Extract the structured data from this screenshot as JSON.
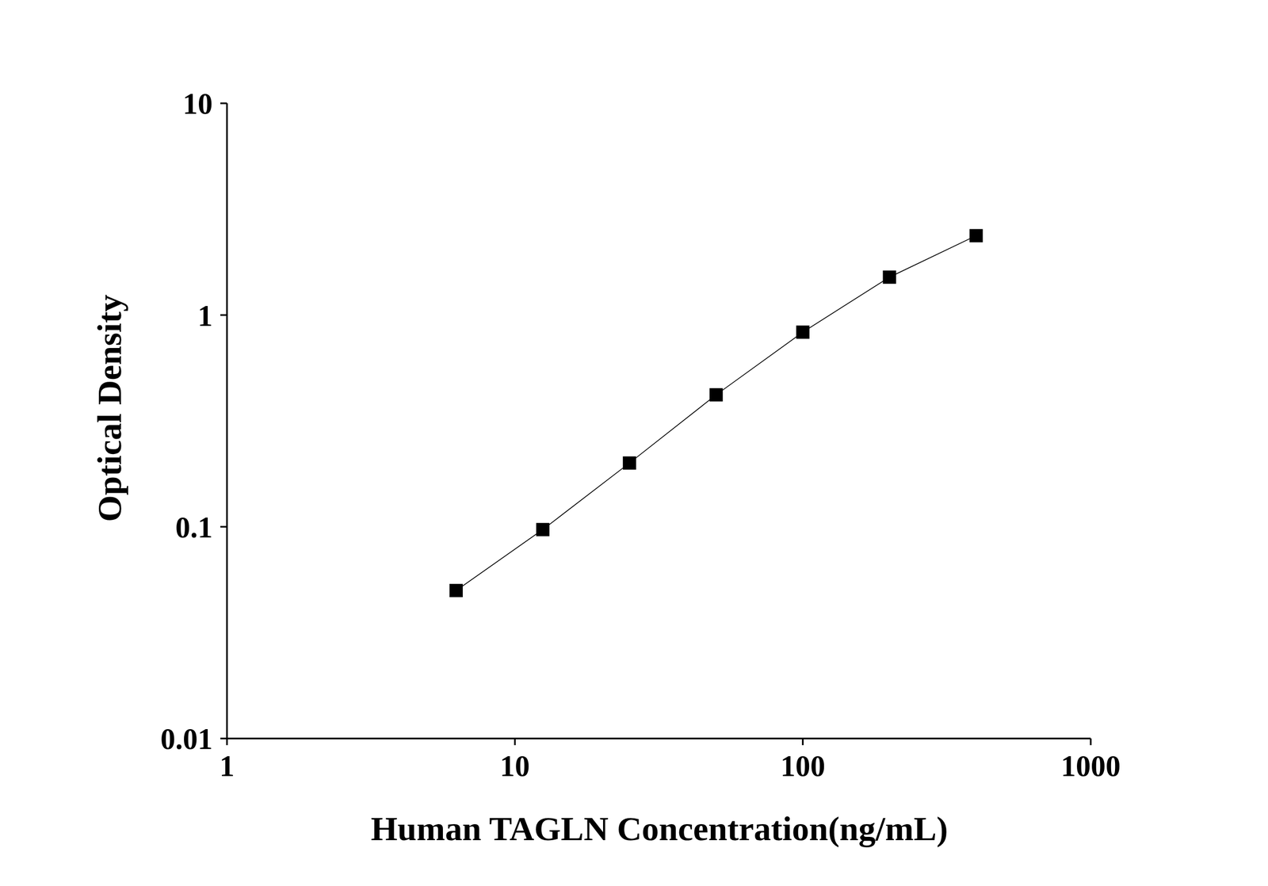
{
  "chart_data": {
    "type": "line",
    "xlabel": "Human TAGLN Concentration(ng/mL)",
    "ylabel": "Optical Density",
    "x": [
      6.25,
      12.5,
      25,
      50,
      100,
      200,
      400
    ],
    "values": [
      0.05,
      0.097,
      0.2,
      0.42,
      0.83,
      1.51,
      2.37
    ],
    "xlim": [
      1,
      1000
    ],
    "ylim": [
      0.01,
      10
    ],
    "xticks": [
      1,
      10,
      100,
      1000
    ],
    "yticks": [
      0.01,
      0.1,
      1,
      10
    ],
    "log": true,
    "grid": false,
    "marker": "square",
    "color": "#000000"
  }
}
